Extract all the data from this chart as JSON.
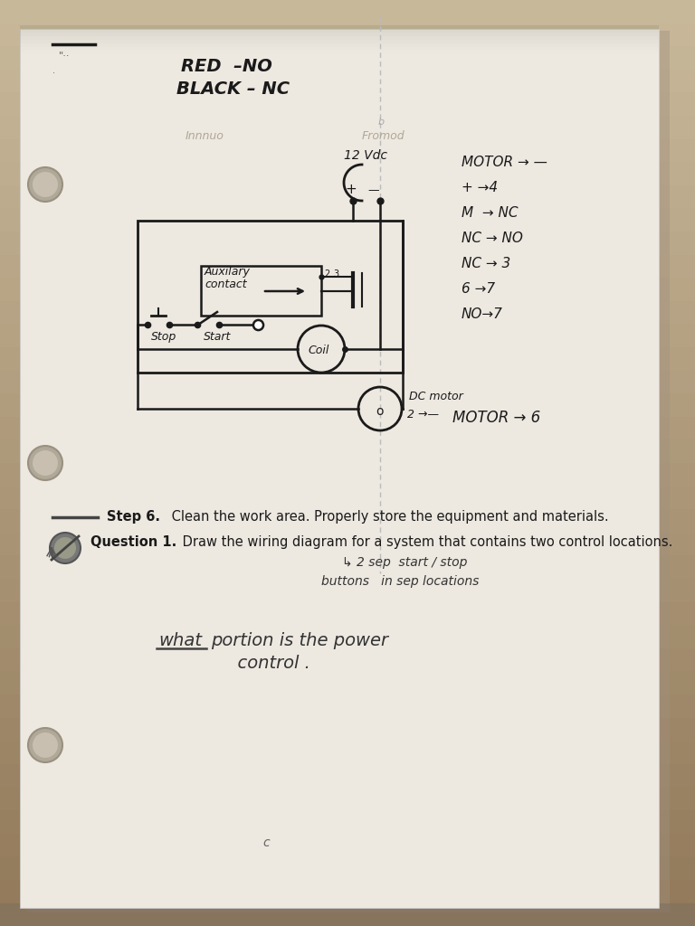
{
  "bg_color_top": "#c8b89a",
  "bg_color_bottom": "#b8a080",
  "paper_color": "#ede8e0",
  "paper_shadow": "#d4ccc0",
  "ink_color": "#1a1a1a",
  "faint_color": "#999999",
  "red_no_text": "RED  –NO",
  "black_nc_text": "BLACK – NC",
  "label_12vdc": "12 Vdc",
  "label_coil": "Coil",
  "label_aux": "Auxilary\ncontact",
  "label_stop": "Stop",
  "label_start": "Start",
  "label_dc_motor": "DC motor",
  "motor_notes": [
    "MOTOR → —",
    "+ →4",
    "M  → NC",
    "NC → NO",
    "NC → 3",
    "6 →7",
    "NO→7"
  ],
  "dc_motor_arrow": "2 →—",
  "motor_bottom": "MOTOR → 6",
  "step6_bold": "Step 6.",
  "step6_rest": " Clean the work area. Properly store the equipment and materials.",
  "q1_bold": "Question 1.",
  "q1_rest": " Draw the wiring diagram for a system that contains two control locations.",
  "handwritten1": "↳ 2 sep  start / stop",
  "handwritten2": "buttons   in sep locations",
  "handwritten3": "what",
  "handwritten3b": "portion is the power",
  "handwritten4": "              control .",
  "faint_left": "Innnuo",
  "faint_right": "Fromod"
}
